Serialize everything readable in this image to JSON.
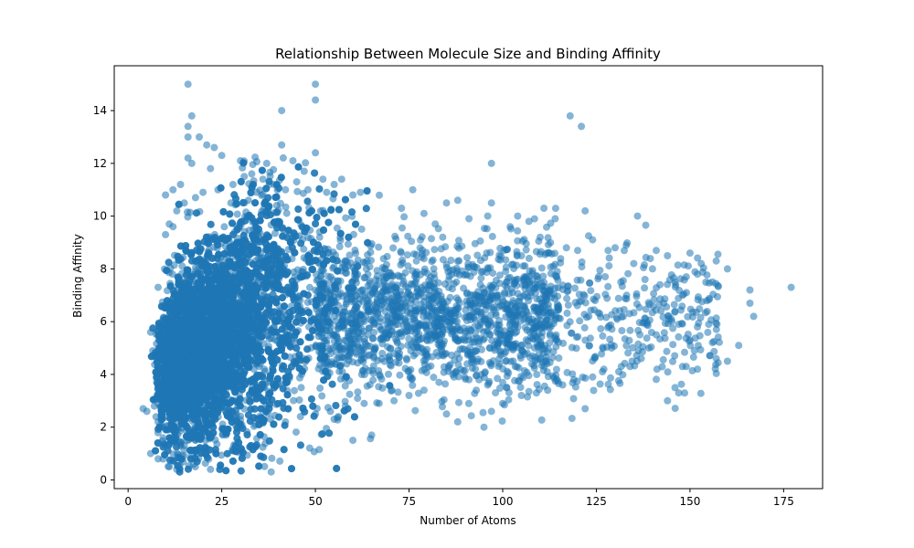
{
  "chart_data": {
    "type": "scatter",
    "title": "Relationship Between Molecule Size and Binding Affinity",
    "xlabel": "Number of Atoms",
    "ylabel": "Binding Affinity",
    "xlim": [
      -3.7,
      185.4
    ],
    "ylim": [
      -0.33,
      15.7
    ],
    "xticks": [
      0,
      25,
      50,
      75,
      100,
      125,
      150,
      175
    ],
    "yticks": [
      0,
      2,
      4,
      6,
      8,
      10,
      12,
      14
    ],
    "grid": false,
    "legend": "none",
    "series": [
      {
        "color": "#1f77b4",
        "alpha": 0.55,
        "description_points": "dense cloud of molecules",
        "points": [
          [
            16,
            15.0
          ],
          [
            50,
            15.0
          ],
          [
            50,
            14.4
          ],
          [
            41,
            14.0
          ],
          [
            17,
            13.8
          ],
          [
            16,
            13.4
          ],
          [
            16,
            13.0
          ],
          [
            19,
            13.0
          ],
          [
            21,
            12.7
          ],
          [
            23,
            12.6
          ],
          [
            25,
            12.3
          ],
          [
            41,
            12.7
          ],
          [
            50,
            12.4
          ],
          [
            30,
            12.1
          ],
          [
            16,
            12.2
          ],
          [
            17,
            12.0
          ],
          [
            22,
            11.8
          ],
          [
            118,
            13.8
          ],
          [
            121,
            13.4
          ],
          [
            97,
            12.0
          ],
          [
            44,
            12.1
          ],
          [
            37,
            12.0
          ],
          [
            47,
            11.7
          ],
          [
            52,
            11.4
          ],
          [
            55,
            11.2
          ],
          [
            57,
            11.4
          ],
          [
            60,
            10.8
          ],
          [
            62,
            10.9
          ],
          [
            76,
            11.0
          ],
          [
            85,
            10.5
          ],
          [
            88,
            10.6
          ],
          [
            97,
            10.5
          ],
          [
            73,
            10.3
          ],
          [
            79,
            10.1
          ],
          [
            82,
            9.7
          ],
          [
            91,
            9.9
          ],
          [
            96,
            10.0
          ],
          [
            102,
            9.6
          ],
          [
            104,
            10.0
          ],
          [
            107,
            9.8
          ],
          [
            111,
            10.3
          ],
          [
            114,
            9.9
          ],
          [
            122,
            10.2
          ],
          [
            136,
            10.0
          ],
          [
            110,
            9.2
          ],
          [
            117,
            8.8
          ],
          [
            120,
            8.7
          ],
          [
            124,
            9.1
          ],
          [
            130,
            8.8
          ],
          [
            133,
            8.9
          ],
          [
            141,
            8.7
          ],
          [
            144,
            8.5
          ],
          [
            150,
            8.6
          ],
          [
            157,
            8.3
          ],
          [
            160,
            8.0
          ],
          [
            153,
            8.2
          ],
          [
            177,
            7.3
          ],
          [
            166,
            7.2
          ],
          [
            166,
            6.7
          ],
          [
            167,
            6.2
          ],
          [
            163,
            5.1
          ],
          [
            160,
            4.5
          ],
          [
            157,
            4.6
          ],
          [
            155,
            5.9
          ],
          [
            152,
            5.8
          ],
          [
            150,
            5.3
          ],
          [
            149,
            4.3
          ],
          [
            148,
            4.3
          ],
          [
            152,
            4.2
          ],
          [
            146,
            3.5
          ],
          [
            147,
            3.3
          ],
          [
            144,
            3.0
          ],
          [
            122,
            2.7
          ],
          [
            97,
            2.6
          ],
          [
            100,
            2.9
          ],
          [
            95,
            2.0
          ],
          [
            88,
            2.2
          ],
          [
            85,
            2.5
          ],
          [
            60,
            1.5
          ],
          [
            55,
            2.3
          ],
          [
            65,
            1.7
          ],
          [
            30,
            1.1
          ],
          [
            22,
            0.4
          ],
          [
            13,
            0.4
          ],
          [
            11,
            0.5
          ],
          [
            8,
            0.8
          ],
          [
            6,
            1.0
          ],
          [
            14,
            1.3
          ],
          [
            4,
            2.7
          ],
          [
            5,
            2.6
          ],
          [
            7,
            2.8
          ],
          [
            9,
            4.0
          ],
          [
            6,
            5.6
          ],
          [
            8,
            7.3
          ],
          [
            10,
            9.3
          ],
          [
            11,
            9.7
          ],
          [
            12,
            9.6
          ],
          [
            13,
            10.2
          ],
          [
            15,
            10.5
          ],
          [
            10,
            10.8
          ],
          [
            12,
            11.0
          ],
          [
            14,
            11.2
          ],
          [
            18,
            10.7
          ],
          [
            20,
            10.9
          ],
          [
            24,
            11.0
          ],
          [
            28,
            11.2
          ],
          [
            31,
            11.5
          ],
          [
            33,
            11.6
          ],
          [
            36,
            11.4
          ],
          [
            39,
            11.2
          ],
          [
            42,
            11.0
          ],
          [
            45,
            11.3
          ],
          [
            48,
            11.0
          ],
          [
            53,
            10.9
          ],
          [
            140,
            8.0
          ],
          [
            135,
            8.2
          ],
          [
            138,
            7.6
          ],
          [
            142,
            7.4
          ],
          [
            146,
            7.5
          ],
          [
            149,
            7.7
          ],
          [
            152,
            7.8
          ],
          [
            156,
            7.5
          ],
          [
            143,
            6.7
          ],
          [
            145,
            6.1
          ],
          [
            147,
            5.9
          ],
          [
            141,
            5.5
          ],
          [
            139,
            5.0
          ],
          [
            137,
            4.6
          ],
          [
            134,
            4.3
          ],
          [
            131,
            4.1
          ],
          [
            127,
            4.2
          ],
          [
            124,
            3.9
          ],
          [
            119,
            3.8
          ],
          [
            116,
            3.6
          ],
          [
            112,
            3.4
          ],
          [
            109,
            3.3
          ],
          [
            105,
            3.2
          ],
          [
            101,
            3.5
          ],
          [
            96,
            3.6
          ],
          [
            91,
            3.8
          ],
          [
            87,
            3.9
          ],
          [
            83,
            3.7
          ],
          [
            79,
            3.4
          ],
          [
            75,
            3.2
          ],
          [
            71,
            3.0
          ],
          [
            67,
            2.9
          ],
          [
            63,
            2.9
          ],
          [
            58,
            2.8
          ],
          [
            54,
            2.6
          ],
          [
            50,
            2.5
          ],
          [
            46,
            2.4
          ],
          [
            42,
            2.2
          ],
          [
            38,
            2.3
          ],
          [
            34,
            2.1
          ],
          [
            30,
            2.0
          ],
          [
            26,
            1.8
          ],
          [
            22,
            1.6
          ],
          [
            18,
            1.5
          ],
          [
            15,
            1.3
          ],
          [
            12,
            1.6
          ],
          [
            10,
            1.9
          ],
          [
            8,
            2.2
          ]
        ]
      }
    ]
  }
}
